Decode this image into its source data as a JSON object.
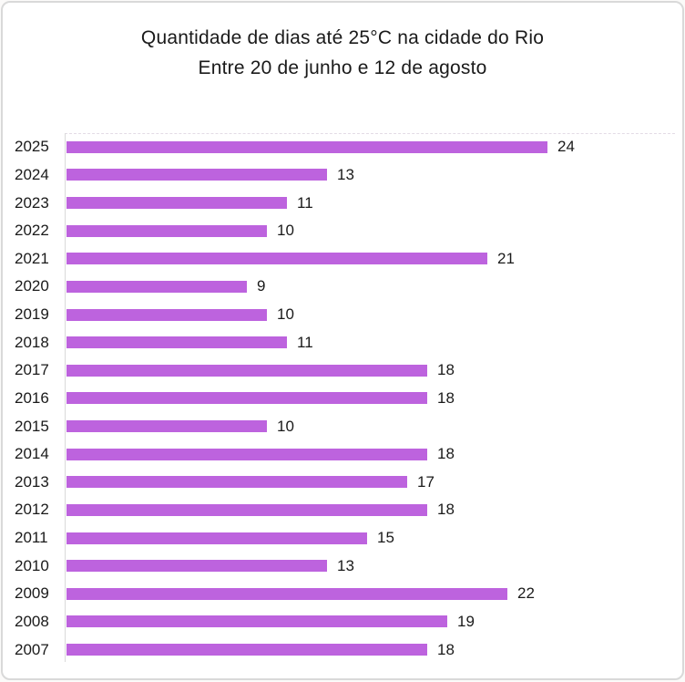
{
  "frame": {
    "background": "#ffffff",
    "border_color": "#d9d9d9"
  },
  "title": {
    "line1": "Quantidade de dias até 25°C na cidade do Rio",
    "line2": "Entre 20 de junho e 12 de agosto"
  },
  "chart_data": {
    "type": "bar",
    "orientation": "horizontal",
    "title": "Quantidade de dias até 25°C na cidade do Rio",
    "subtitle": "Entre 20 de junho e 12 de agosto",
    "xlabel": "",
    "ylabel": "",
    "categories": [
      "2025",
      "2024",
      "2023",
      "2022",
      "2021",
      "2020",
      "2019",
      "2018",
      "2017",
      "2016",
      "2015",
      "2014",
      "2013",
      "2012",
      "2011",
      "2010",
      "2009",
      "2008",
      "2007"
    ],
    "values": [
      24,
      13,
      11,
      10,
      21,
      9,
      10,
      11,
      18,
      18,
      10,
      18,
      17,
      18,
      15,
      13,
      22,
      19,
      18
    ],
    "xlim": [
      0,
      25
    ],
    "grid": false,
    "legend": false,
    "value_labels": true,
    "bar_color": "#bd63de",
    "axis_line_color": "#d9d9d9",
    "text_color": "#1a1a1a"
  }
}
